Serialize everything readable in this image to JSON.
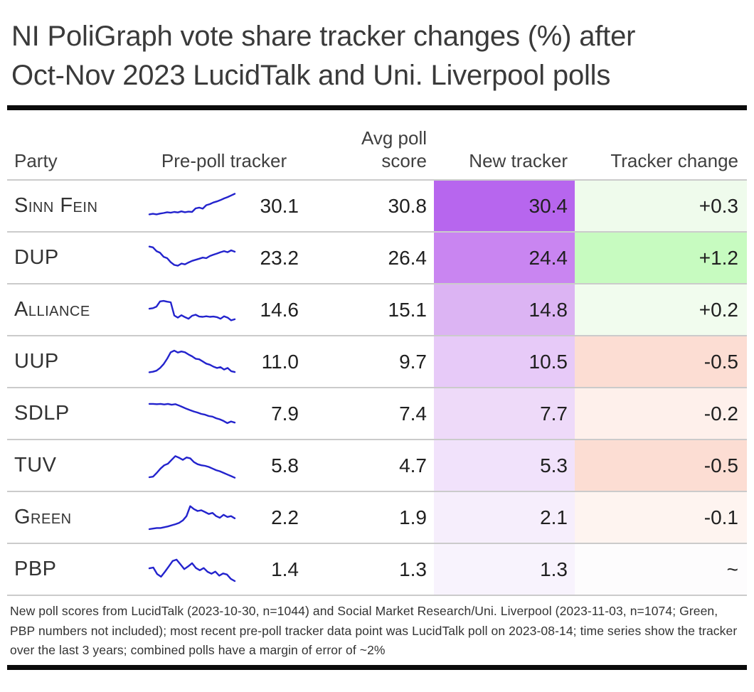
{
  "title": {
    "line1": "NI PoliGraph vote share tracker changes (%) after",
    "line2": "Oct-Nov 2023 LucidTalk and Uni. Liverpool polls"
  },
  "accent_colors": {
    "sparkline_stroke": "#2323cd",
    "rule_black": "#0b0b0b",
    "divider_gray": "#cbcbcb"
  },
  "chart_data": {
    "type": "table",
    "title": "NI PoliGraph vote share tracker changes (%) after Oct-Nov 2023 LucidTalk and Uni. Liverpool polls",
    "columns": [
      "Party",
      "Pre-poll tracker",
      "Avg poll score",
      "New tracker",
      "Tracker change"
    ],
    "sparkline_description": "blue line time series of tracker over last 3 years, one per party",
    "rows": [
      {
        "party": "Sinn Fein",
        "pre_poll_tracker": 30.1,
        "avg_poll_score": 30.8,
        "new_tracker": 30.4,
        "tracker_change": "+0.3",
        "new_tracker_bg": "#b766ee",
        "change_bg": "#effbec",
        "sparkline": [
          0.2,
          0.22,
          0.2,
          0.23,
          0.25,
          0.28,
          0.26,
          0.29,
          0.27,
          0.31,
          0.28,
          0.3,
          0.29,
          0.42,
          0.45,
          0.41,
          0.54,
          0.58,
          0.64,
          0.68,
          0.73,
          0.79,
          0.84,
          0.9,
          0.96
        ]
      },
      {
        "party": "DUP",
        "pre_poll_tracker": 23.2,
        "avg_poll_score": 26.4,
        "new_tracker": 24.4,
        "tracker_change": "+1.2",
        "new_tracker_bg": "#c985f1",
        "change_bg": "#c7fbc0",
        "sparkline": [
          0.93,
          0.9,
          0.76,
          0.7,
          0.55,
          0.5,
          0.35,
          0.25,
          0.22,
          0.3,
          0.27,
          0.34,
          0.4,
          0.44,
          0.48,
          0.52,
          0.5,
          0.58,
          0.63,
          0.67,
          0.72,
          0.76,
          0.72,
          0.79,
          0.74
        ]
      },
      {
        "party": "Alliance",
        "pre_poll_tracker": 14.6,
        "avg_poll_score": 15.1,
        "new_tracker": 14.8,
        "tracker_change": "+0.2",
        "new_tracker_bg": "#dcb4f3",
        "change_bg": "#f1fcee",
        "sparkline": [
          0.55,
          0.57,
          0.63,
          0.82,
          0.84,
          0.81,
          0.79,
          0.3,
          0.22,
          0.31,
          0.24,
          0.18,
          0.29,
          0.33,
          0.26,
          0.25,
          0.27,
          0.25,
          0.26,
          0.24,
          0.18,
          0.27,
          0.22,
          0.12,
          0.16
        ]
      },
      {
        "party": "UUP",
        "pre_poll_tracker": 11.0,
        "avg_poll_score": 9.7,
        "new_tracker": 10.5,
        "tracker_change": "-0.5",
        "new_tracker_bg": "#e7caf8",
        "change_bg": "#fcddd3",
        "sparkline": [
          0.12,
          0.14,
          0.18,
          0.28,
          0.42,
          0.62,
          0.86,
          0.92,
          0.85,
          0.89,
          0.86,
          0.78,
          0.71,
          0.62,
          0.6,
          0.52,
          0.44,
          0.4,
          0.33,
          0.28,
          0.31,
          0.22,
          0.28,
          0.16,
          0.13
        ]
      },
      {
        "party": "SDLP",
        "pre_poll_tracker": 7.9,
        "avg_poll_score": 7.4,
        "new_tracker": 7.7,
        "tracker_change": "-0.2",
        "new_tracker_bg": "#eedaf9",
        "change_bg": "#fef0eb",
        "sparkline": [
          0.87,
          0.87,
          0.86,
          0.87,
          0.85,
          0.87,
          0.84,
          0.86,
          0.81,
          0.75,
          0.69,
          0.64,
          0.59,
          0.55,
          0.5,
          0.47,
          0.42,
          0.4,
          0.34,
          0.3,
          0.24,
          0.16,
          0.22,
          0.18
        ]
      },
      {
        "party": "TUV",
        "pre_poll_tracker": 5.8,
        "avg_poll_score": 4.7,
        "new_tracker": 5.3,
        "tracker_change": "-0.5",
        "new_tracker_bg": "#f1e2fb",
        "change_bg": "#fcddd3",
        "sparkline": [
          0.08,
          0.1,
          0.24,
          0.4,
          0.52,
          0.58,
          0.72,
          0.86,
          0.8,
          0.72,
          0.81,
          0.78,
          0.64,
          0.56,
          0.52,
          0.5,
          0.46,
          0.4,
          0.34,
          0.3,
          0.24,
          0.18,
          0.12,
          0.06
        ]
      },
      {
        "party": "Green",
        "pre_poll_tracker": 2.2,
        "avg_poll_score": 1.9,
        "new_tracker": 2.1,
        "tracker_change": "-0.1",
        "new_tracker_bg": "#f6eefc",
        "change_bg": "#fef4f0",
        "sparkline": [
          0.08,
          0.1,
          0.12,
          0.12,
          0.15,
          0.18,
          0.22,
          0.26,
          0.31,
          0.4,
          0.56,
          0.93,
          0.82,
          0.75,
          0.78,
          0.71,
          0.64,
          0.68,
          0.56,
          0.5,
          0.61,
          0.53,
          0.56,
          0.48
        ]
      },
      {
        "party": "PBP",
        "pre_poll_tracker": 1.4,
        "avg_poll_score": 1.3,
        "new_tracker": 1.3,
        "tracker_change": "~",
        "new_tracker_bg": "#f8f3fd",
        "change_bg": "#fdfcfd",
        "sparkline": [
          0.55,
          0.58,
          0.34,
          0.24,
          0.42,
          0.62,
          0.82,
          0.87,
          0.7,
          0.52,
          0.62,
          0.74,
          0.56,
          0.48,
          0.56,
          0.42,
          0.35,
          0.43,
          0.28,
          0.36,
          0.32,
          0.16,
          0.08
        ]
      }
    ]
  },
  "footnote": "New poll scores from LucidTalk (2023-10-30, n=1044) and Social Market Research/Uni. Liverpool (2023-11-03, n=1074; Green, PBP numbers not included); most recent pre-poll tracker data point was LucidTalk poll on 2023-08-14; time series show the tracker over the last 3 years; combined polls have a margin of error of ~2%"
}
